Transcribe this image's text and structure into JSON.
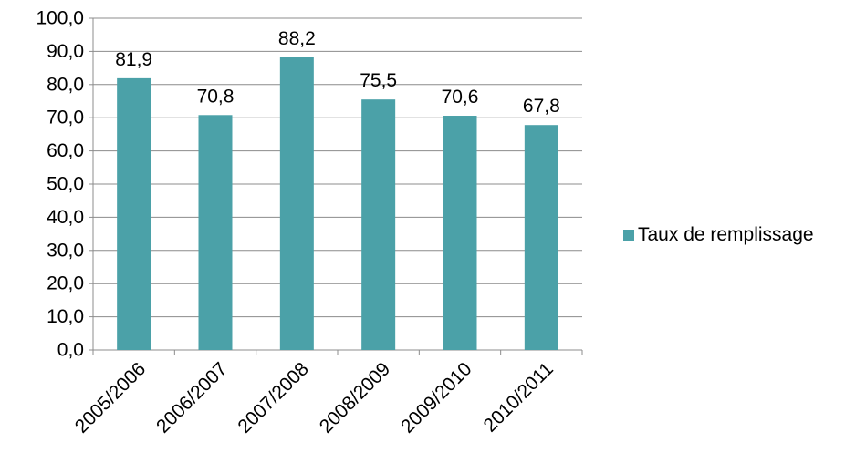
{
  "colors": {
    "bar": "#4BA1A8",
    "grid": "#8C8C8C",
    "axis": "#8C8C8C",
    "text": "#000000"
  },
  "chart_data": {
    "type": "bar",
    "categories": [
      "2005/2006",
      "2006/2007",
      "2007/2008",
      "2008/2009",
      "2009/2010",
      "2010/2011"
    ],
    "series": [
      {
        "name": "Taux de remplissage",
        "values": [
          81.9,
          70.8,
          88.2,
          75.5,
          70.6,
          67.8
        ]
      }
    ],
    "data_labels": [
      "81,9",
      "70,8",
      "88,2",
      "75,5",
      "70,6",
      "67,8"
    ],
    "y_tick_labels": [
      "0,0",
      "10,0",
      "20,0",
      "30,0",
      "40,0",
      "50,0",
      "60,0",
      "70,0",
      "80,0",
      "90,0",
      "100,0"
    ],
    "ylim": [
      0,
      100
    ],
    "y_step": 10,
    "title": "",
    "xlabel": "",
    "ylabel": "",
    "grid": true,
    "legend_position": "right"
  }
}
